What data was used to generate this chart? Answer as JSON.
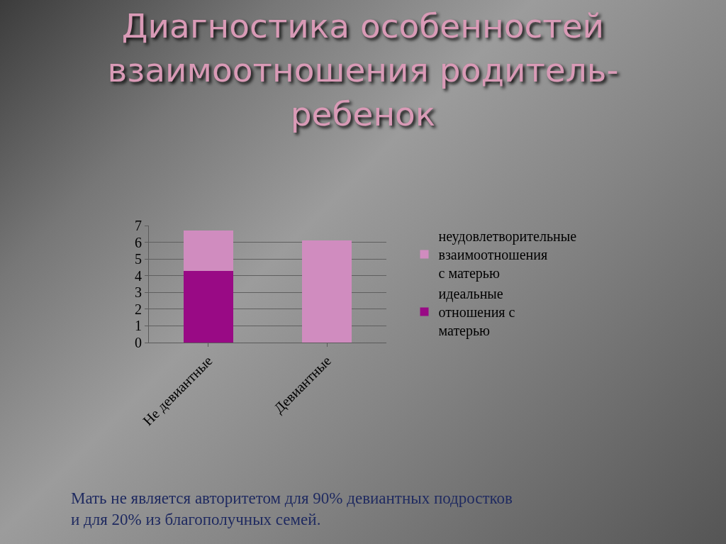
{
  "chart_data": {
    "type": "bar",
    "title": "Диагностика особенностей взаимоотношения родитель-ребенок",
    "categories": [
      "Не девиантные",
      "Девиантные"
    ],
    "series": [
      {
        "name": "идеальные отношения с матерью",
        "color": "#990a85",
        "values": [
          4.3,
          0
        ]
      },
      {
        "name": "неудовлетворительные взаимоотношения с матерью",
        "color": "#d08cbf",
        "values": [
          2.4,
          6.1
        ]
      }
    ],
    "stacked": true,
    "ylim": [
      0,
      7
    ],
    "yticks": [
      0,
      1,
      2,
      3,
      4,
      5,
      6,
      7
    ],
    "grid": "y",
    "legend": "right",
    "annotations": [
      "Мать не является авторитетом для 90% девиантных подростков и для 20% из благополучных семей."
    ]
  }
}
